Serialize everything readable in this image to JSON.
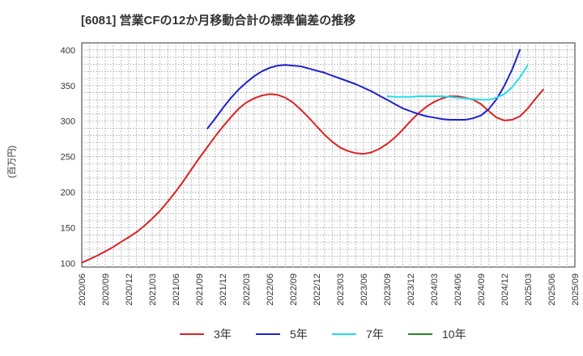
{
  "chart_data": {
    "type": "line",
    "title": "[6081]  営業CFの12か月移動合計の標準偏差の推移",
    "ylabel": "(百万円)",
    "xlabel": "",
    "ylim": [
      95,
      410
    ],
    "yticks": [
      100,
      150,
      200,
      250,
      300,
      350,
      400
    ],
    "xlim": [
      "2020-06",
      "2025-09"
    ],
    "xticks": [
      "2020/06",
      "2020/09",
      "2020/12",
      "2021/03",
      "2021/06",
      "2021/09",
      "2021/12",
      "2022/03",
      "2022/06",
      "2022/09",
      "2022/12",
      "2023/03",
      "2023/06",
      "2023/09",
      "2023/12",
      "2024/03",
      "2024/06",
      "2024/09",
      "2024/12",
      "2025/03",
      "2025/06",
      "2025/09"
    ],
    "grid": true,
    "legend_position": "bottom",
    "series": [
      {
        "name": "3年",
        "color": "#dd2222",
        "points": [
          [
            "2020-06",
            101
          ],
          [
            "2020-07",
            106
          ],
          [
            "2020-08",
            111
          ],
          [
            "2020-09",
            117
          ],
          [
            "2020-10",
            123
          ],
          [
            "2020-11",
            130
          ],
          [
            "2020-12",
            137
          ],
          [
            "2021-01",
            144
          ],
          [
            "2021-02",
            153
          ],
          [
            "2021-03",
            163
          ],
          [
            "2021-04",
            174
          ],
          [
            "2021-05",
            187
          ],
          [
            "2021-06",
            201
          ],
          [
            "2021-07",
            216
          ],
          [
            "2021-08",
            232
          ],
          [
            "2021-09",
            248
          ],
          [
            "2021-10",
            263
          ],
          [
            "2021-11",
            278
          ],
          [
            "2021-12",
            292
          ],
          [
            "2022-01",
            305
          ],
          [
            "2022-02",
            317
          ],
          [
            "2022-03",
            326
          ],
          [
            "2022-04",
            332
          ],
          [
            "2022-05",
            336
          ],
          [
            "2022-06",
            338
          ],
          [
            "2022-07",
            337
          ],
          [
            "2022-08",
            333
          ],
          [
            "2022-09",
            326
          ],
          [
            "2022-10",
            316
          ],
          [
            "2022-11",
            305
          ],
          [
            "2022-12",
            293
          ],
          [
            "2023-01",
            281
          ],
          [
            "2023-02",
            271
          ],
          [
            "2023-03",
            263
          ],
          [
            "2023-04",
            258
          ],
          [
            "2023-05",
            255
          ],
          [
            "2023-06",
            254
          ],
          [
            "2023-07",
            256
          ],
          [
            "2023-08",
            261
          ],
          [
            "2023-09",
            268
          ],
          [
            "2023-10",
            277
          ],
          [
            "2023-11",
            288
          ],
          [
            "2023-12",
            300
          ],
          [
            "2024-01",
            311
          ],
          [
            "2024-02",
            320
          ],
          [
            "2024-03",
            327
          ],
          [
            "2024-04",
            332
          ],
          [
            "2024-05",
            335
          ],
          [
            "2024-06",
            335
          ],
          [
            "2024-07",
            333
          ],
          [
            "2024-08",
            330
          ],
          [
            "2024-09",
            324
          ],
          [
            "2024-10",
            314
          ],
          [
            "2024-11",
            305
          ],
          [
            "2024-12",
            301
          ],
          [
            "2025-01",
            302
          ],
          [
            "2025-02",
            307
          ],
          [
            "2025-03",
            318
          ],
          [
            "2025-04",
            332
          ],
          [
            "2025-05",
            345
          ]
        ]
      },
      {
        "name": "5年",
        "color": "#1f22cc",
        "points": [
          [
            "2021-10",
            289
          ],
          [
            "2021-11",
            303
          ],
          [
            "2021-12",
            318
          ],
          [
            "2022-01",
            332
          ],
          [
            "2022-02",
            344
          ],
          [
            "2022-03",
            354
          ],
          [
            "2022-04",
            363
          ],
          [
            "2022-05",
            370
          ],
          [
            "2022-06",
            375
          ],
          [
            "2022-07",
            378
          ],
          [
            "2022-08",
            379
          ],
          [
            "2022-09",
            378
          ],
          [
            "2022-10",
            377
          ],
          [
            "2022-11",
            374
          ],
          [
            "2022-12",
            371
          ],
          [
            "2023-01",
            368
          ],
          [
            "2023-02",
            364
          ],
          [
            "2023-03",
            360
          ],
          [
            "2023-04",
            356
          ],
          [
            "2023-05",
            352
          ],
          [
            "2023-06",
            347
          ],
          [
            "2023-07",
            342
          ],
          [
            "2023-08",
            336
          ],
          [
            "2023-09",
            330
          ],
          [
            "2023-10",
            324
          ],
          [
            "2023-11",
            318
          ],
          [
            "2023-12",
            314
          ],
          [
            "2024-01",
            310
          ],
          [
            "2024-02",
            307
          ],
          [
            "2024-03",
            305
          ],
          [
            "2024-04",
            303
          ],
          [
            "2024-05",
            302
          ],
          [
            "2024-06",
            302
          ],
          [
            "2024-07",
            302
          ],
          [
            "2024-08",
            304
          ],
          [
            "2024-09",
            308
          ],
          [
            "2024-10",
            317
          ],
          [
            "2024-11",
            331
          ],
          [
            "2024-12",
            350
          ],
          [
            "2025-01",
            373
          ],
          [
            "2025-02",
            401
          ]
        ]
      },
      {
        "name": "7年",
        "color": "#22ddee",
        "points": [
          [
            "2023-09",
            335
          ],
          [
            "2023-10",
            334
          ],
          [
            "2023-11",
            334
          ],
          [
            "2023-12",
            334
          ],
          [
            "2024-01",
            335
          ],
          [
            "2024-02",
            335
          ],
          [
            "2024-03",
            335
          ],
          [
            "2024-04",
            335
          ],
          [
            "2024-05",
            334
          ],
          [
            "2024-06",
            333
          ],
          [
            "2024-07",
            332
          ],
          [
            "2024-08",
            331
          ],
          [
            "2024-09",
            330
          ],
          [
            "2024-10",
            330
          ],
          [
            "2024-11",
            333
          ],
          [
            "2024-12",
            338
          ],
          [
            "2025-01",
            348
          ],
          [
            "2025-02",
            362
          ],
          [
            "2025-03",
            379
          ]
        ]
      },
      {
        "name": "10年",
        "color": "#228822",
        "points": []
      }
    ]
  }
}
